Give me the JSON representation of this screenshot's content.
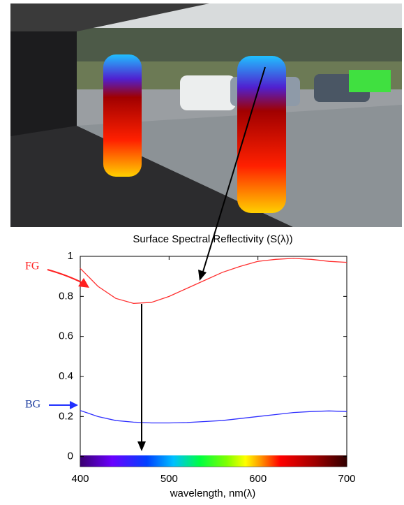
{
  "chart_data": {
    "type": "line",
    "title": "Surface Spectral Reflectivity (S(λ))",
    "x_label": "wavelength, nm(λ)",
    "x": [
      400,
      420,
      440,
      460,
      480,
      500,
      520,
      540,
      560,
      580,
      600,
      620,
      640,
      660,
      680,
      700
    ],
    "series": [
      {
        "name": "FG",
        "color": "#ff3030",
        "values": [
          0.94,
          0.85,
          0.79,
          0.765,
          0.77,
          0.8,
          0.84,
          0.88,
          0.92,
          0.95,
          0.975,
          0.985,
          0.99,
          0.985,
          0.975,
          0.97
        ]
      },
      {
        "name": "BG",
        "color": "#3030ff",
        "values": [
          0.23,
          0.2,
          0.18,
          0.172,
          0.168,
          0.168,
          0.17,
          0.175,
          0.18,
          0.19,
          0.2,
          0.21,
          0.22,
          0.225,
          0.228,
          0.225
        ]
      }
    ],
    "xlim": [
      400,
      700
    ],
    "xticks": [
      400,
      500,
      600,
      700
    ],
    "ylim": [
      -0.05,
      1
    ],
    "yticks": [
      0,
      0.2,
      0.4,
      0.6,
      0.8,
      1
    ]
  }
}
